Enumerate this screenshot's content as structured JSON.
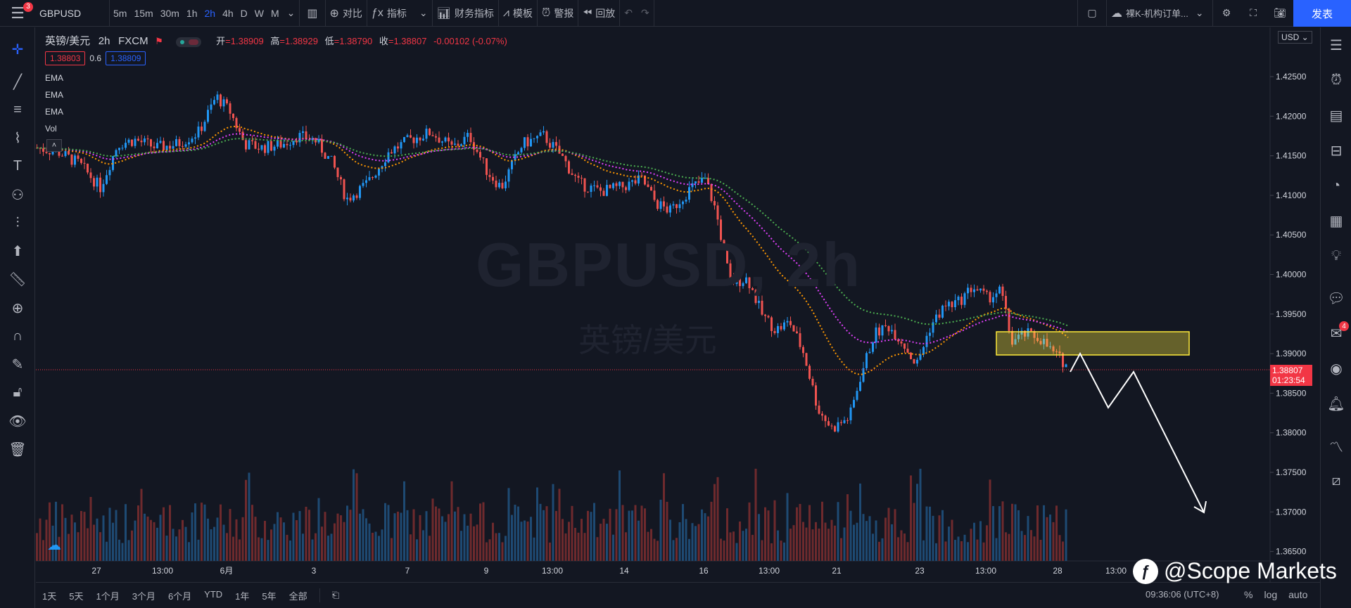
{
  "toolbar": {
    "notification_count": "3",
    "symbol": "GBPUSD",
    "intervals": [
      "5m",
      "15m",
      "30m",
      "1h",
      "2h",
      "4h",
      "D",
      "W",
      "M"
    ],
    "active_interval": "2h",
    "compare_label": "对比",
    "indicators_label": "指标",
    "financials_label": "财务指标",
    "templates_label": "模板",
    "alert_label": "警报",
    "replay_label": "回放",
    "layout_name": "裸K-机构订单...",
    "publish_label": "发表"
  },
  "legend": {
    "title": "英镑/美元",
    "interval": "2h",
    "source": "FXCM",
    "open_label": "开",
    "open": "=1.38909",
    "high_label": "高",
    "high": "=1.38929",
    "low_label": "低",
    "low": "=1.38790",
    "close_label": "收",
    "close": "=1.38807",
    "change": "-0.00102 (-0.07%)",
    "bid": "1.38803",
    "spread": "0.6",
    "ask": "1.38809"
  },
  "indicators": [
    "EMA",
    "EMA",
    "EMA",
    "Vol"
  ],
  "watermark": {
    "symbol": "GBPUSD, 2h",
    "name": "英镑/美元"
  },
  "price_axis": {
    "currency": "USD",
    "labels": [
      "1.42500",
      "1.42000",
      "1.41500",
      "1.41000",
      "1.40500",
      "1.40000",
      "1.39500",
      "1.39000",
      "1.38500",
      "1.38000",
      "1.37500",
      "1.37000",
      "1.36500"
    ],
    "last_price": "1.38807",
    "countdown": "01:23:54"
  },
  "time_axis": {
    "labels": [
      "27",
      "13:00",
      "6月",
      "3",
      "7",
      "9",
      "13:00",
      "14",
      "16",
      "13:00",
      "21",
      "23",
      "13:00",
      "28",
      "13:00"
    ]
  },
  "bottom": {
    "ranges": [
      "1天",
      "5天",
      "1个月",
      "3个月",
      "6个月",
      "YTD",
      "1年",
      "5年",
      "全部"
    ],
    "clock": "09:36:06 (UTC+8)",
    "pct_label": "%",
    "log_label": "log",
    "auto_label": "auto"
  },
  "brand": "@Scope Markets",
  "colors": {
    "up": "#2196f3",
    "down": "#ef5350",
    "ema_fast": "#ff9800",
    "ema_mid": "#e040fb",
    "ema_slow": "#4caf50",
    "zone": "#ffeb3b",
    "accent": "#2962ff"
  },
  "icons": {
    "left": [
      "crosshair-icon",
      "trendline-icon",
      "fib-icon",
      "pattern-icon",
      "text-icon",
      "node-icon",
      "measure-icon",
      "arrow-up-icon",
      "ruler-icon",
      "zoom-icon",
      "magnet-icon",
      "pencil-lock-icon",
      "lock-icon",
      "eye-icon",
      "trash-icon"
    ],
    "right": [
      "watchlist-icon",
      "alarm-icon",
      "news-icon",
      "data-window-icon",
      "clock-icon",
      "calendar-icon",
      "idea-icon",
      "chat-icon",
      "private-chat-icon",
      "stream-icon",
      "notification-icon",
      "depth-icon",
      "ruler-axis-icon"
    ]
  },
  "right_chat_badge": "4"
}
